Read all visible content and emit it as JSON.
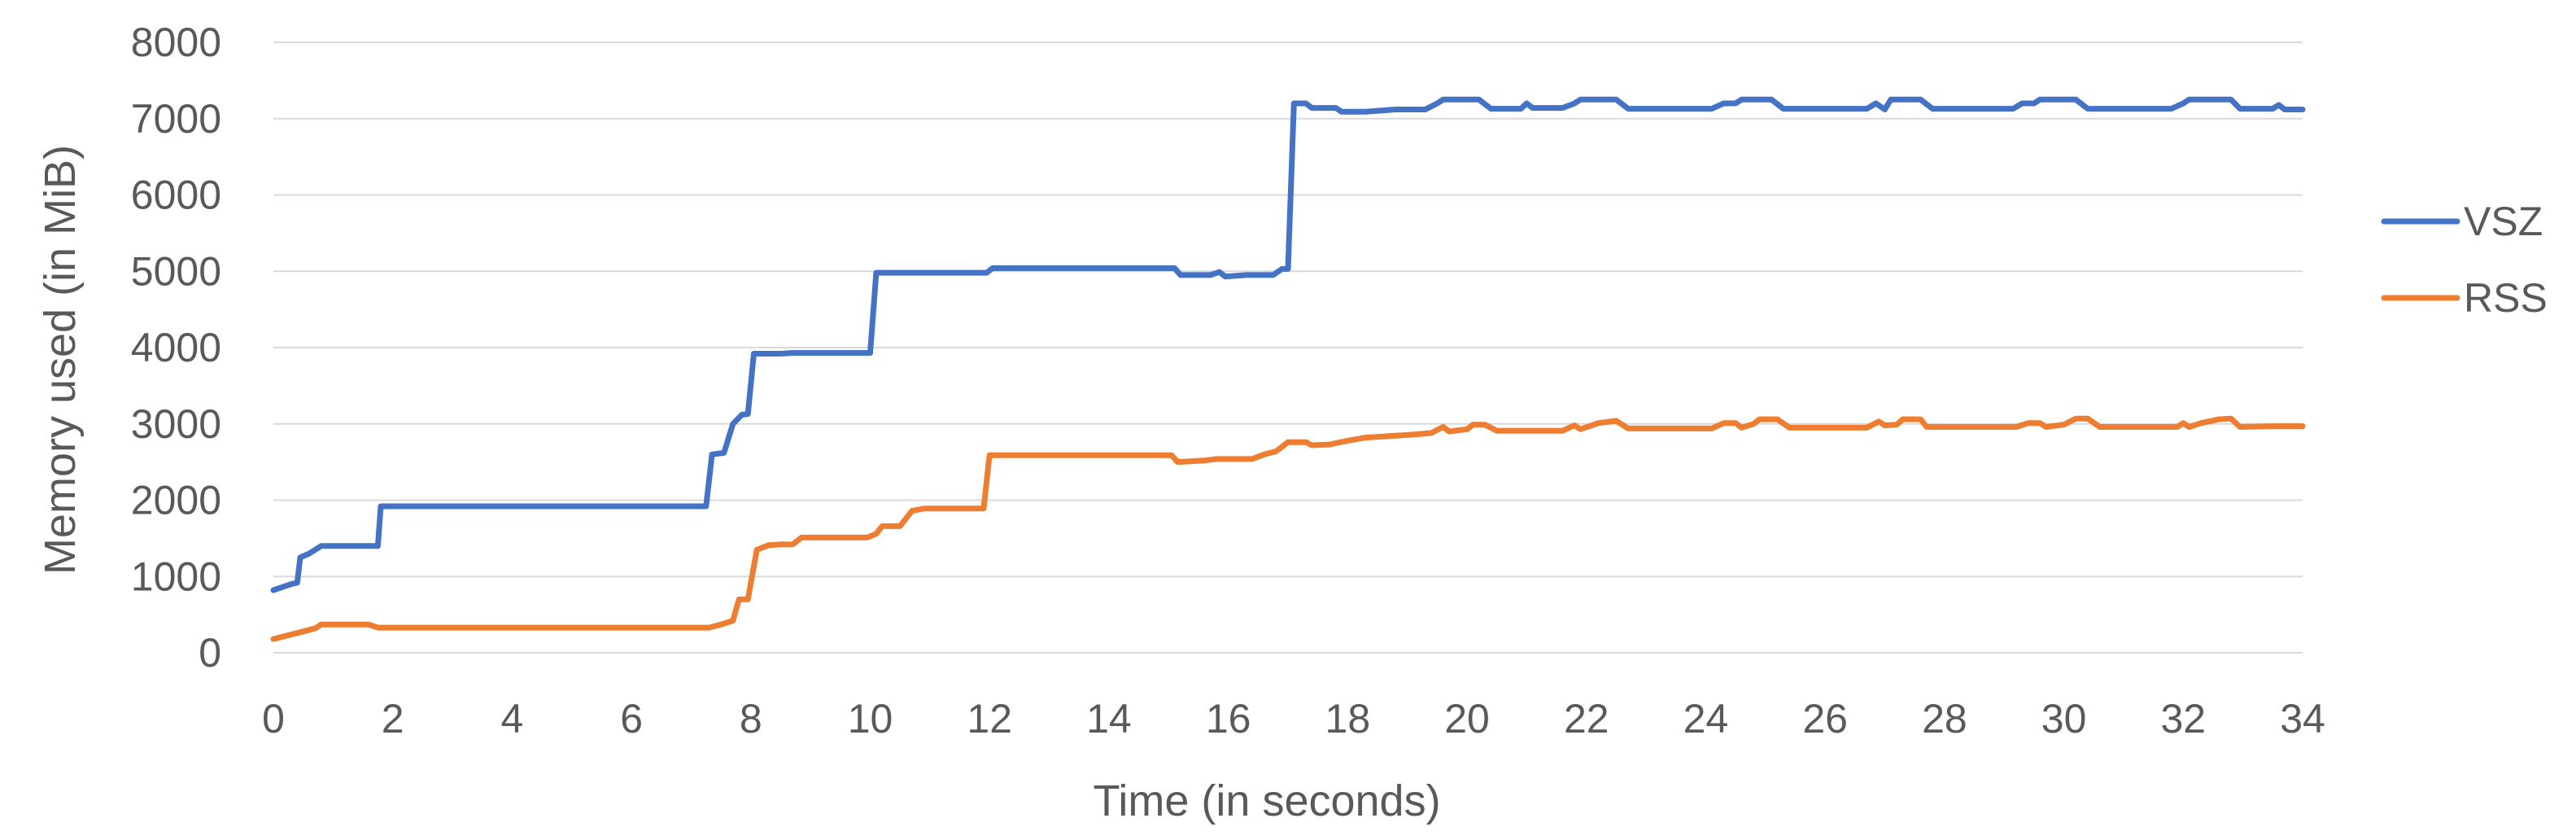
{
  "chart_data": {
    "type": "line",
    "title": "",
    "xlabel": "Time (in seconds)",
    "ylabel": "Memory used (in MiB)",
    "xlim": [
      0,
      34
    ],
    "ylim": [
      0,
      8000
    ],
    "x_ticks": [
      0,
      2,
      4,
      6,
      8,
      10,
      12,
      14,
      16,
      18,
      20,
      22,
      24,
      26,
      28,
      30,
      32,
      34
    ],
    "y_ticks": [
      0,
      1000,
      2000,
      3000,
      4000,
      5000,
      6000,
      7000,
      8000
    ],
    "grid": "horizontal",
    "legend_position": "right",
    "series": [
      {
        "name": "VSZ",
        "color": "#4472c4",
        "points": [
          [
            0,
            820
          ],
          [
            0.3,
            900
          ],
          [
            0.4,
            920
          ],
          [
            0.45,
            1250
          ],
          [
            0.6,
            1300
          ],
          [
            0.8,
            1400
          ],
          [
            1.6,
            1400
          ],
          [
            1.75,
            1400
          ],
          [
            1.8,
            1920
          ],
          [
            7.25,
            1920
          ],
          [
            7.35,
            2600
          ],
          [
            7.55,
            2620
          ],
          [
            7.7,
            3000
          ],
          [
            7.85,
            3120
          ],
          [
            7.95,
            3130
          ],
          [
            8.05,
            3920
          ],
          [
            8.5,
            3920
          ],
          [
            8.7,
            3930
          ],
          [
            10.0,
            3930
          ],
          [
            10.1,
            4980
          ],
          [
            11.95,
            4980
          ],
          [
            12.05,
            5040
          ],
          [
            15.1,
            5040
          ],
          [
            15.2,
            4950
          ],
          [
            15.7,
            4950
          ],
          [
            15.85,
            4990
          ],
          [
            15.95,
            4930
          ],
          [
            16.3,
            4950
          ],
          [
            16.75,
            4950
          ],
          [
            16.9,
            5030
          ],
          [
            17.0,
            5030
          ],
          [
            17.1,
            7200
          ],
          [
            17.3,
            7200
          ],
          [
            17.4,
            7140
          ],
          [
            17.8,
            7140
          ],
          [
            17.9,
            7090
          ],
          [
            18.3,
            7090
          ],
          [
            18.8,
            7120
          ],
          [
            19.3,
            7120
          ],
          [
            19.5,
            7200
          ],
          [
            19.6,
            7250
          ],
          [
            20.2,
            7250
          ],
          [
            20.4,
            7130
          ],
          [
            20.9,
            7130
          ],
          [
            21.0,
            7200
          ],
          [
            21.1,
            7140
          ],
          [
            21.6,
            7140
          ],
          [
            21.8,
            7200
          ],
          [
            21.9,
            7250
          ],
          [
            22.5,
            7250
          ],
          [
            22.7,
            7130
          ],
          [
            24.1,
            7130
          ],
          [
            24.3,
            7200
          ],
          [
            24.5,
            7200
          ],
          [
            24.6,
            7250
          ],
          [
            25.1,
            7250
          ],
          [
            25.3,
            7130
          ],
          [
            26.7,
            7130
          ],
          [
            26.85,
            7200
          ],
          [
            27.0,
            7120
          ],
          [
            27.1,
            7250
          ],
          [
            27.6,
            7250
          ],
          [
            27.8,
            7130
          ],
          [
            29.15,
            7130
          ],
          [
            29.3,
            7200
          ],
          [
            29.5,
            7200
          ],
          [
            29.6,
            7250
          ],
          [
            30.2,
            7250
          ],
          [
            30.4,
            7130
          ],
          [
            31.8,
            7130
          ],
          [
            32.0,
            7200
          ],
          [
            32.1,
            7250
          ],
          [
            32.8,
            7250
          ],
          [
            32.95,
            7130
          ],
          [
            33.5,
            7130
          ],
          [
            33.6,
            7180
          ],
          [
            33.7,
            7120
          ],
          [
            34,
            7120
          ]
        ]
      },
      {
        "name": "RSS",
        "color": "#ed7d31",
        "points": [
          [
            0,
            180
          ],
          [
            0.5,
            280
          ],
          [
            0.7,
            320
          ],
          [
            0.8,
            370
          ],
          [
            1.6,
            370
          ],
          [
            1.75,
            330
          ],
          [
            7.3,
            330
          ],
          [
            7.5,
            370
          ],
          [
            7.7,
            420
          ],
          [
            7.8,
            700
          ],
          [
            7.95,
            700
          ],
          [
            8.1,
            1350
          ],
          [
            8.3,
            1410
          ],
          [
            8.5,
            1420
          ],
          [
            8.7,
            1420
          ],
          [
            8.85,
            1510
          ],
          [
            9.95,
            1510
          ],
          [
            10.1,
            1560
          ],
          [
            10.2,
            1660
          ],
          [
            10.5,
            1660
          ],
          [
            10.7,
            1860
          ],
          [
            10.9,
            1890
          ],
          [
            11.9,
            1890
          ],
          [
            12.0,
            2590
          ],
          [
            15.05,
            2590
          ],
          [
            15.15,
            2500
          ],
          [
            15.6,
            2520
          ],
          [
            15.8,
            2540
          ],
          [
            16.4,
            2540
          ],
          [
            16.6,
            2600
          ],
          [
            16.8,
            2640
          ],
          [
            17.0,
            2760
          ],
          [
            17.3,
            2760
          ],
          [
            17.4,
            2720
          ],
          [
            17.7,
            2730
          ],
          [
            18.0,
            2780
          ],
          [
            18.3,
            2820
          ],
          [
            19.1,
            2860
          ],
          [
            19.4,
            2880
          ],
          [
            19.6,
            2960
          ],
          [
            19.7,
            2900
          ],
          [
            20.0,
            2930
          ],
          [
            20.1,
            2990
          ],
          [
            20.3,
            2990
          ],
          [
            20.5,
            2910
          ],
          [
            21.6,
            2910
          ],
          [
            21.8,
            2980
          ],
          [
            21.9,
            2930
          ],
          [
            22.2,
            3010
          ],
          [
            22.5,
            3040
          ],
          [
            22.7,
            2940
          ],
          [
            24.1,
            2940
          ],
          [
            24.3,
            3010
          ],
          [
            24.5,
            3010
          ],
          [
            24.6,
            2950
          ],
          [
            24.8,
            3000
          ],
          [
            24.9,
            3060
          ],
          [
            25.2,
            3060
          ],
          [
            25.4,
            2950
          ],
          [
            26.7,
            2950
          ],
          [
            26.9,
            3030
          ],
          [
            27.0,
            2980
          ],
          [
            27.2,
            2990
          ],
          [
            27.3,
            3060
          ],
          [
            27.6,
            3060
          ],
          [
            27.7,
            2960
          ],
          [
            29.2,
            2960
          ],
          [
            29.4,
            3010
          ],
          [
            29.6,
            3010
          ],
          [
            29.7,
            2960
          ],
          [
            30.0,
            2990
          ],
          [
            30.2,
            3070
          ],
          [
            30.4,
            3070
          ],
          [
            30.6,
            2960
          ],
          [
            31.9,
            2960
          ],
          [
            32.0,
            3010
          ],
          [
            32.1,
            2960
          ],
          [
            32.3,
            3010
          ],
          [
            32.6,
            3060
          ],
          [
            32.8,
            3070
          ],
          [
            32.95,
            2960
          ],
          [
            33.5,
            2970
          ],
          [
            34,
            2970
          ]
        ]
      }
    ]
  }
}
